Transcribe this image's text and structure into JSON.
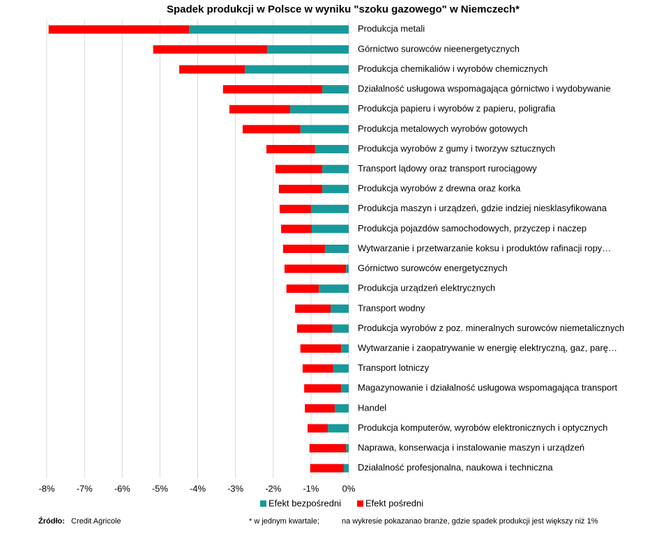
{
  "chart_data": {
    "type": "stacked-barh",
    "title": "Spadek produkcji w Polsce w wyniku \"szoku gazowego\" w Niemczech*",
    "categories": [
      "Produkcja metali",
      "Górnictwo surowców nieenergetycznych",
      "Produkcja chemikaliów i wyrobów chemicznych",
      "Działalność usługowa wspomagająca górnictwo i wydobywanie",
      "Produkcja papieru i wyrobów z papieru, poligrafia",
      "Produkcja metalowych wyrobów gotowych",
      "Produkcja wyrobów z gumy i tworzyw sztucznych",
      "Transport lądowy oraz transport rurociągowy",
      "Produkcja wyrobów z drewna oraz korka",
      "Produkcja maszyn i urządzeń, gdzie indziej niesklasyfikowana",
      "Produkcja pojazdów samochodowych, przyczep i naczep",
      "Wytwarzanie i przetwarzanie koksu i produktów rafinacji ropy…",
      "Górnictwo surowców energetycznych",
      "Produkcja urządzeń elektrycznych",
      "Transport wodny",
      "Produkcja wyrobów z poz. mineralnych surowców niemetalicznych",
      "Wytwarzanie i zaopatrywanie w energię elektryczną, gaz, parę…",
      "Transport lotniczy",
      "Magazynowanie i działalność usługowa wspomagająca transport",
      "Handel",
      "Produkcja komputerów, wyrobów elektronicznych i optycznych",
      "Naprawa, konserwacja i instalowanie maszyn i urządzeń",
      "Działalność profesjonalna, naukowa i techniczna"
    ],
    "series": [
      {
        "name": "Efekt bezpośredni",
        "color": "#17999a",
        "values": [
          -4.23,
          -2.16,
          -2.75,
          -0.7,
          -1.55,
          -1.28,
          -0.89,
          -0.7,
          -0.7,
          -1.0,
          -0.98,
          -0.63,
          -0.07,
          -0.79,
          -0.48,
          -0.43,
          -0.2,
          -0.41,
          -0.2,
          -0.37,
          -0.55,
          -0.07,
          -0.13
        ]
      },
      {
        "name": "Efekt pośredni",
        "color": "#ff0000",
        "values": [
          -3.72,
          -3.02,
          -1.74,
          -2.63,
          -1.61,
          -1.53,
          -1.29,
          -1.24,
          -1.15,
          -0.83,
          -0.81,
          -1.11,
          -1.63,
          -0.86,
          -0.94,
          -0.94,
          -1.08,
          -0.81,
          -0.98,
          -0.79,
          -0.54,
          -0.97,
          -0.89
        ]
      }
    ],
    "xlim": [
      -8,
      0
    ],
    "xticks": [
      {
        "value": -8,
        "label": "-8%"
      },
      {
        "value": -7,
        "label": "-7%"
      },
      {
        "value": -6,
        "label": "-6%"
      },
      {
        "value": -5,
        "label": "-5%"
      },
      {
        "value": -4,
        "label": "-4%"
      },
      {
        "value": -3,
        "label": "-3%"
      },
      {
        "value": -2,
        "label": "-2%"
      },
      {
        "value": -1,
        "label": "-1%"
      },
      {
        "value": 0,
        "label": "0%"
      }
    ],
    "grid": true,
    "legend": "bottom",
    "source_label": "Źródło:",
    "source": "Credit Agricole",
    "footnotes": [
      "* w jednym kwartale;",
      "na wykresie pokazanao branże, gdzie spadek produkcji jest większy niż 1%"
    ]
  }
}
